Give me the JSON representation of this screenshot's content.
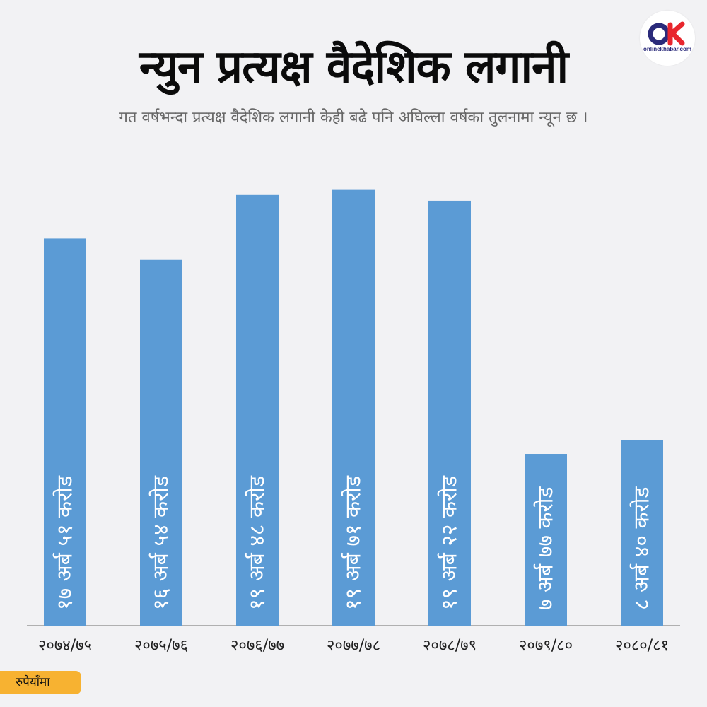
{
  "header": {
    "title": "न्युन प्रत्यक्ष वैदेशिक लगानी",
    "subtitle": "गत वर्षभन्दा प्रत्यक्ष वैदेशिक लगानी केही बढे पनि अघिल्ला वर्षका तुलनामा न्यून छ ।"
  },
  "logo": {
    "name": "onlinekhabar-logo-icon",
    "text": "onlinekhabar.com"
  },
  "unit_label": "रुपैयाँमा",
  "colors": {
    "bar": "#5b9bd5",
    "axis": "#999999",
    "label": "#ffffff",
    "badge": "#f7b231",
    "logo_red": "#e8262d",
    "logo_navy": "#2a2a7a"
  },
  "chart_data": {
    "type": "bar",
    "title": "न्युन प्रत्यक्ष वैदेशिक लगानी",
    "subtitle": "गत वर्षभन्दा प्रत्यक्ष वैदेशिक लगानी केही बढे पनि अघिल्ला वर्षका तुलनामा न्यून छ ।",
    "unit": "रुपैयाँमा",
    "categories": [
      "२०७४/७५",
      "२०७५/७६",
      "२०७६/७७",
      "२०७७/७८",
      "२०७८/७९",
      "२०७९/८०",
      "२०८०/८१"
    ],
    "values": [
      17.51,
      16.54,
      19.48,
      19.71,
      19.22,
      7.77,
      8.4
    ],
    "value_labels": [
      "१७ अर्ब ५१ करोड",
      "१६ अर्ब ५४ करोड",
      "१९ अर्ब ४८ करोड",
      "१९ अर्ब ७१ करोड",
      "१९ अर्ब २२ करोड",
      "७ अर्ब ७७ करोड",
      "८ अर्ब ४० करोड"
    ],
    "ylim": [
      0,
      22
    ],
    "grid": false,
    "legend": "none"
  }
}
